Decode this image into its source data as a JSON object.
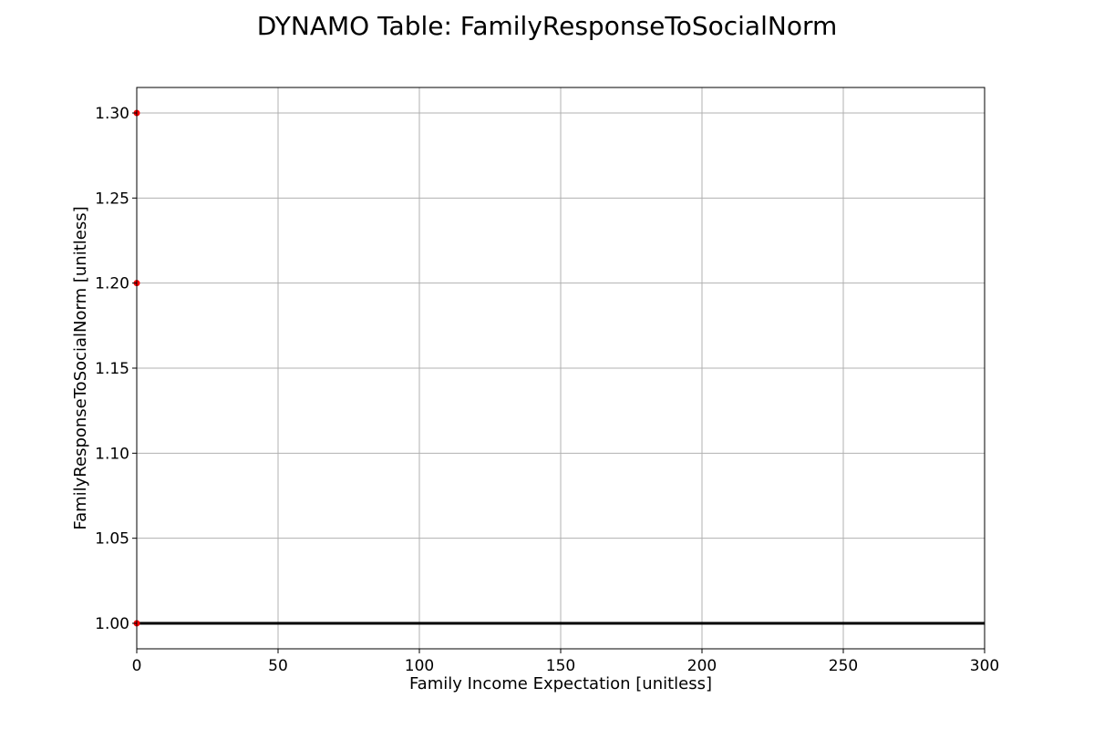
{
  "chart_data": {
    "type": "line",
    "title": "DYNAMO Table: FamilyResponseToSocialNorm",
    "xlabel": "Family Income Expectation [unitless]",
    "ylabel": "FamilyResponseToSocialNorm [unitless]",
    "xlim": [
      0,
      300
    ],
    "ylim": [
      0.985,
      1.315
    ],
    "xticks": [
      0,
      50,
      100,
      150,
      200,
      250,
      300
    ],
    "xtick_labels": [
      "0",
      "50",
      "100",
      "150",
      "200",
      "250",
      "300"
    ],
    "yticks": [
      1.0,
      1.05,
      1.1,
      1.15,
      1.2,
      1.25,
      1.3
    ],
    "ytick_labels": [
      "1.00",
      "1.05",
      "1.10",
      "1.15",
      "1.20",
      "1.25",
      "1.30"
    ],
    "grid": true,
    "series": [
      {
        "kind": "line",
        "color": "#000000",
        "points": [
          [
            0,
            1.0
          ],
          [
            300,
            1.0
          ]
        ]
      },
      {
        "kind": "scatter",
        "color": "#ff0000",
        "points": [
          [
            0,
            1.0
          ],
          [
            0,
            1.2
          ],
          [
            0,
            1.3
          ]
        ]
      }
    ]
  }
}
